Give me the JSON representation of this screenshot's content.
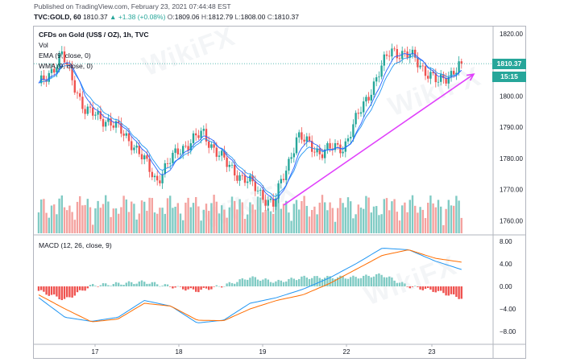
{
  "header": {
    "published": "Published on TradingView.com, February 23, 2021 07:44:48 EST",
    "symbol": "TVC:GOLD, 60",
    "last": "1810.37",
    "change": "▲ +1.38 (+0.08%)",
    "o_label": "O:",
    "o": "1809.06",
    "h_label": "H:",
    "h": "1812.79",
    "l_label": "L:",
    "l": "1808.00",
    "c_label": "C:",
    "c": "1810.37"
  },
  "legend": {
    "title": "CFDs on Gold (US$ / OZ), 1h, TVC",
    "vol": "Vol",
    "ema": "EMA (9, close, 0)",
    "wma": "WMA (9, close, 0)",
    "macd": "MACD (12, 26, close, 9)"
  },
  "price_tag": "1810.37",
  "countdown_tag": "15:15",
  "watermark": "WikiFX",
  "colors": {
    "up": "#26a69a",
    "down": "#ef5350",
    "vol_up": "#80cbc4",
    "vol_down": "#f4a3a0",
    "ema": "#2196f3",
    "wma": "#2962ff",
    "macd": "#2196f3",
    "signal": "#ff6d00",
    "arrow": "#e040fb",
    "last_line": "#26a69a"
  },
  "chart_data": [
    {
      "type": "candlestick",
      "title": "CFDs on Gold (US$ / OZ), 1h, TVC",
      "x_ticks": [
        "17",
        "18",
        "19",
        "22",
        "23"
      ],
      "ylim": [
        1756,
        1822
      ],
      "y_ticks": [
        1760,
        1770,
        1780,
        1790,
        1800,
        1810,
        1820
      ],
      "key_points": [
        {
          "x": "16 start",
          "price": 1803
        },
        {
          "x": "16",
          "price": 1813
        },
        {
          "x": "16 late",
          "price": 1795
        },
        {
          "x": "17",
          "price": 1792
        },
        {
          "x": "17 mid",
          "price": 1785
        },
        {
          "x": "17 late",
          "price": 1773
        },
        {
          "x": "18",
          "price": 1783
        },
        {
          "x": "18 peak",
          "price": 1788
        },
        {
          "x": "18 late",
          "price": 1778
        },
        {
          "x": "19",
          "price": 1772
        },
        {
          "x": "19 low",
          "price": 1765
        },
        {
          "x": "19 late",
          "price": 1787
        },
        {
          "x": "19 close",
          "price": 1782
        },
        {
          "x": "22",
          "price": 1784
        },
        {
          "x": "22 mid",
          "price": 1800
        },
        {
          "x": "22 high",
          "price": 1815
        },
        {
          "x": "23",
          "price": 1812
        },
        {
          "x": "23 dip",
          "price": 1804
        },
        {
          "x": "23 last",
          "price": 1810.37
        }
      ],
      "trendline": {
        "from": {
          "x": "19",
          "price": 1765
        },
        "to": {
          "x": "after 23",
          "price": 1807
        }
      }
    },
    {
      "type": "bar",
      "name": "Vol",
      "description": "hourly volume"
    },
    {
      "type": "line",
      "title": "MACD (12, 26, close, 9)",
      "ylim": [
        -10,
        9
      ],
      "y_ticks": [
        -8,
        -4,
        0,
        4,
        8
      ],
      "series": [
        {
          "name": "MACD",
          "key_values": [
            -2,
            -5.5,
            -6.2,
            -5.5,
            -2.5,
            -3.5,
            -6.5,
            -6.0,
            -3.0,
            -2.0,
            -0.5,
            1.5,
            4.0,
            6.8,
            6.5,
            4.5,
            3.0
          ]
        },
        {
          "name": "Signal",
          "key_values": [
            -1.5,
            -4.0,
            -6.3,
            -5.8,
            -3.0,
            -3.5,
            -6.0,
            -6.1,
            -4.0,
            -2.5,
            -1.5,
            0.5,
            3.0,
            5.5,
            6.5,
            5.0,
            4.3
          ]
        }
      ]
    }
  ]
}
